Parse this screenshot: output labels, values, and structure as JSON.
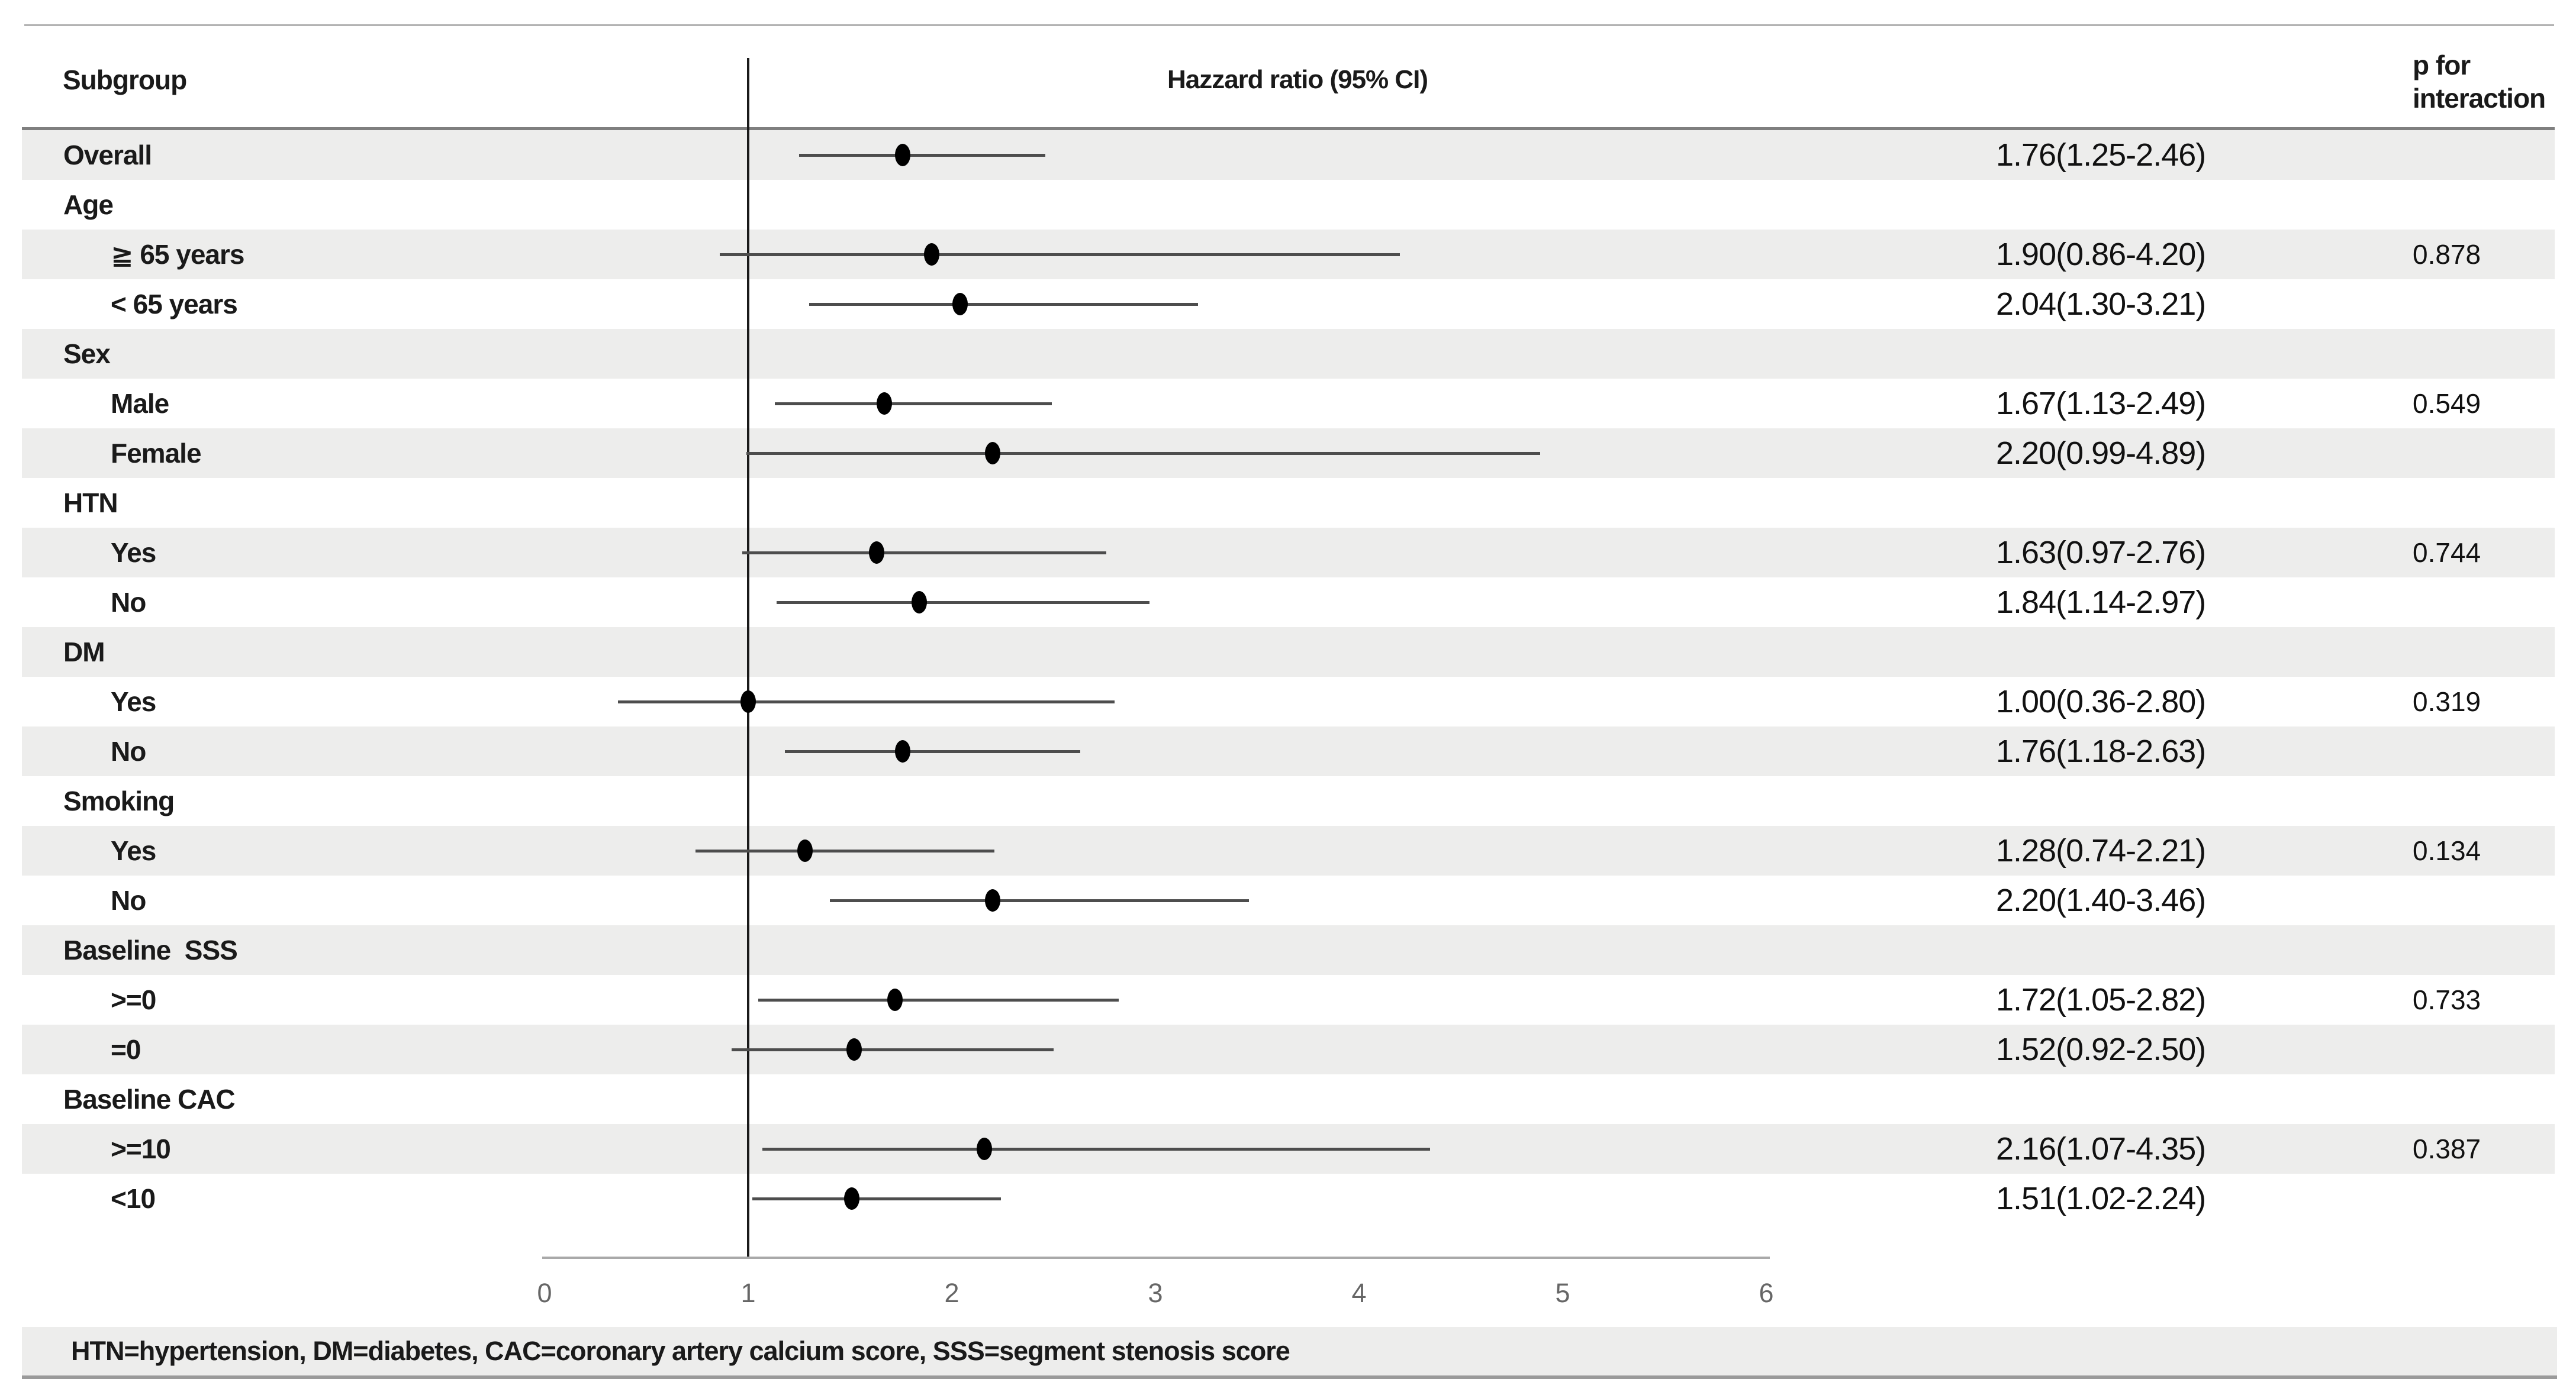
{
  "header": {
    "subgroup": "Subgroup",
    "plot_title": "Hazzard ratio (95% CI)",
    "p_line1": "p for",
    "p_line2": "interaction"
  },
  "footnote": "HTN=hypertension, DM=diabetes, CAC=coronary artery calcium score, SSS=segment stenosis score",
  "colors": {
    "band": "#ededec",
    "ref_line": "#1a1a1a",
    "ci_line": "#4d4d4d",
    "marker": "#000000",
    "axis_line": "#a9a9a9",
    "tick_text": "#666666",
    "header_rule": "#7f7f7f"
  },
  "chart_data": {
    "type": "forest",
    "title": "Hazzard ratio (95% CI)",
    "xlim": [
      0,
      6
    ],
    "x_ticks": [
      "0",
      "1",
      "2",
      "3",
      "4",
      "5",
      "6"
    ],
    "reference_line": 1,
    "grid": false,
    "rows": [
      {
        "label": "Overall",
        "indent": 0,
        "hr": 1.76,
        "lo": 1.25,
        "hi": 2.46,
        "ci_text": "1.76(1.25-2.46)",
        "p": ""
      },
      {
        "label": "Age",
        "indent": 0
      },
      {
        "label": "≧ 65 years",
        "indent": 1,
        "hr": 1.9,
        "lo": 0.86,
        "hi": 4.2,
        "ci_text": "1.90(0.86-4.20)",
        "p": "0.878"
      },
      {
        "label": "< 65 years",
        "indent": 1,
        "hr": 2.04,
        "lo": 1.3,
        "hi": 3.21,
        "ci_text": "2.04(1.30-3.21)",
        "p": ""
      },
      {
        "label": "Sex",
        "indent": 0
      },
      {
        "label": "Male",
        "indent": 1,
        "hr": 1.67,
        "lo": 1.13,
        "hi": 2.49,
        "ci_text": "1.67(1.13-2.49)",
        "p": "0.549"
      },
      {
        "label": "Female",
        "indent": 1,
        "hr": 2.2,
        "lo": 0.99,
        "hi": 4.89,
        "ci_text": "2.20(0.99-4.89)",
        "p": ""
      },
      {
        "label": "HTN",
        "indent": 0
      },
      {
        "label": "Yes",
        "indent": 1,
        "hr": 1.63,
        "lo": 0.97,
        "hi": 2.76,
        "ci_text": "1.63(0.97-2.76)",
        "p": "0.744"
      },
      {
        "label": "No",
        "indent": 1,
        "hr": 1.84,
        "lo": 1.14,
        "hi": 2.97,
        "ci_text": "1.84(1.14-2.97)",
        "p": ""
      },
      {
        "label": "DM",
        "indent": 0
      },
      {
        "label": "Yes",
        "indent": 1,
        "hr": 1.0,
        "lo": 0.36,
        "hi": 2.8,
        "ci_text": "1.00(0.36-2.80)",
        "p": "0.319"
      },
      {
        "label": "No",
        "indent": 1,
        "hr": 1.76,
        "lo": 1.18,
        "hi": 2.63,
        "ci_text": "1.76(1.18-2.63)",
        "p": ""
      },
      {
        "label": "Smoking",
        "indent": 0
      },
      {
        "label": "Yes",
        "indent": 1,
        "hr": 1.28,
        "lo": 0.74,
        "hi": 2.21,
        "ci_text": "1.28(0.74-2.21)",
        "p": "0.134"
      },
      {
        "label": "No",
        "indent": 1,
        "hr": 2.2,
        "lo": 1.4,
        "hi": 3.46,
        "ci_text": "2.20(1.40-3.46)",
        "p": ""
      },
      {
        "label": "Baseline  SSS",
        "indent": 0
      },
      {
        "label": ">=0",
        "indent": 1,
        "hr": 1.72,
        "lo": 1.05,
        "hi": 2.82,
        "ci_text": "1.72(1.05-2.82)",
        "p": "0.733"
      },
      {
        "label": "=0",
        "indent": 1,
        "hr": 1.52,
        "lo": 0.92,
        "hi": 2.5,
        "ci_text": "1.52(0.92-2.50)",
        "p": ""
      },
      {
        "label": "Baseline CAC",
        "indent": 0
      },
      {
        "label": ">=10",
        "indent": 1,
        "hr": 2.16,
        "lo": 1.07,
        "hi": 4.35,
        "ci_text": "2.16(1.07-4.35)",
        "p": "0.387"
      },
      {
        "label": "<10",
        "indent": 1,
        "hr": 1.51,
        "lo": 1.02,
        "hi": 2.24,
        "ci_text": "1.51(1.02-2.24)",
        "p": ""
      }
    ]
  }
}
